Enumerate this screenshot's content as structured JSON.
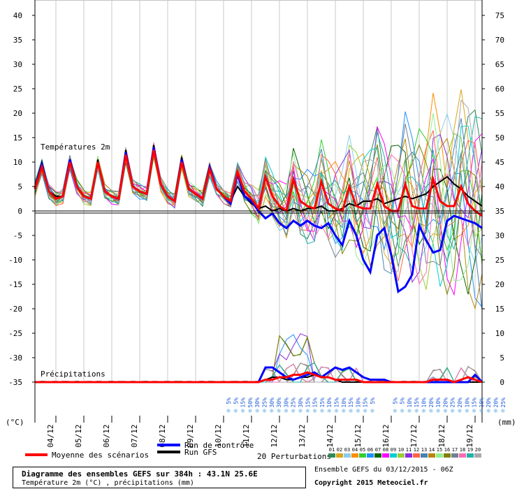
{
  "chart_data": {
    "type": "line",
    "title": "Diagramme des ensembles GEFS sur 384h : 43.1N 25.6E",
    "subtitle": "Température 2m (°C) , précipitations (mm)",
    "section_labels": {
      "temperature": "Températures 2m",
      "precipitation": "Précipitations"
    },
    "left_axis": {
      "unit_label": "(°C)",
      "ylim": [
        -35,
        40
      ],
      "ticks": [
        40,
        35,
        30,
        25,
        20,
        15,
        10,
        5,
        0,
        -5,
        -10,
        -15,
        -20,
        -25,
        -30,
        -35
      ]
    },
    "right_axis": {
      "unit_label": "(mm)",
      "ylim": [
        0,
        75
      ],
      "ticks": [
        75,
        70,
        65,
        60,
        55,
        50,
        45,
        40,
        35,
        30,
        25,
        20,
        15,
        10,
        5,
        0
      ]
    },
    "x_labels": [
      "04/12",
      "05/12",
      "06/12",
      "07/12",
      "08/12",
      "09/12",
      "10/12",
      "11/12",
      "12/12",
      "13/12",
      "14/12",
      "15/12",
      "16/12",
      "17/12",
      "18/12",
      "19/12"
    ],
    "x_hours": [
      0,
      6,
      12,
      18,
      24,
      30,
      36,
      42,
      48,
      54,
      60,
      66,
      72,
      78,
      84,
      90,
      96,
      102,
      108,
      114,
      120,
      126,
      132,
      138,
      144,
      150,
      156,
      162,
      168,
      174,
      180,
      186,
      192,
      198,
      204,
      210,
      216,
      222,
      228,
      234,
      240,
      246,
      252,
      258,
      264,
      270,
      276,
      282,
      288,
      294,
      300,
      306,
      312,
      318,
      324,
      330,
      336,
      342,
      348,
      354,
      360,
      366,
      372,
      378,
      384
    ],
    "series": [
      {
        "name": "Moyenne des scénarios",
        "color": "#ff0000",
        "temp": [
          4.5,
          9.0,
          4.0,
          2.5,
          3.0,
          10.0,
          5.0,
          3.0,
          2.5,
          10.0,
          4.0,
          3.0,
          2.5,
          11.5,
          5.0,
          4.0,
          3.5,
          12.5,
          5.5,
          3.0,
          2.0,
          10.0,
          4.5,
          3.5,
          2.5,
          8.5,
          4.5,
          3.0,
          2.0,
          8.0,
          4.0,
          2.5,
          0.5,
          7.0,
          3.0,
          1.0,
          0.0,
          6.5,
          2.0,
          1.0,
          0.5,
          6.0,
          1.5,
          0.5,
          0.0,
          5.0,
          1.0,
          0.5,
          0.5,
          5.5,
          1.0,
          0.0,
          0.0,
          5.5,
          1.0,
          0.5,
          0.5,
          6.5,
          2.0,
          1.0,
          1.0,
          5.0,
          1.5,
          0.0,
          -1.0
        ],
        "precip": [
          0,
          0,
          0,
          0,
          0,
          0,
          0,
          0,
          0,
          0,
          0,
          0,
          0,
          0,
          0,
          0,
          0,
          0,
          0,
          0,
          0,
          0,
          0,
          0,
          0,
          0,
          0,
          0,
          0,
          0,
          0,
          0,
          0,
          0.5,
          0.5,
          1,
          1,
          1.5,
          1.5,
          2,
          1.5,
          1,
          1,
          0.5,
          0.5,
          0.5,
          0.5,
          0,
          0,
          0,
          0,
          0,
          0,
          0,
          0,
          0,
          0,
          0.5,
          0.5,
          0.5,
          0,
          0.5,
          1,
          0.5,
          0
        ]
      },
      {
        "name": "Run de contrôle",
        "color": "#0000ff",
        "temp": [
          4.5,
          9.5,
          4.0,
          2.5,
          3.0,
          10.5,
          5.0,
          3.0,
          2.5,
          10.0,
          4.0,
          3.0,
          2.5,
          12.0,
          5.0,
          4.0,
          3.5,
          13.0,
          5.5,
          3.0,
          2.0,
          10.5,
          4.5,
          3.5,
          2.5,
          9.0,
          4.5,
          3.0,
          1.5,
          7.5,
          3.0,
          2.0,
          0.0,
          -1.5,
          -0.5,
          -2.5,
          -3.5,
          -2.0,
          -3.0,
          -2.0,
          -3.0,
          -3.5,
          -2.5,
          -5.0,
          -7.0,
          -2.0,
          -5.0,
          -10.0,
          -12.5,
          -5.0,
          -3.5,
          -9.0,
          -16.5,
          -15.5,
          -13.0,
          -3.0,
          -6.0,
          -8.5,
          -8.0,
          -2.0,
          -1.0,
          -1.5,
          -2.0,
          -2.5,
          -3.5
        ],
        "precip": [
          0,
          0,
          0,
          0,
          0,
          0,
          0,
          0,
          0,
          0,
          0,
          0,
          0,
          0,
          0,
          0,
          0,
          0,
          0,
          0,
          0,
          0,
          0,
          0,
          0,
          0,
          0,
          0,
          0,
          0,
          0,
          0,
          0,
          3,
          3,
          2,
          1,
          0.5,
          1,
          1.5,
          2,
          1,
          2,
          3,
          2.5,
          3,
          2,
          1,
          0.5,
          0.5,
          0.5,
          0,
          0,
          0,
          0,
          0,
          0,
          0,
          0,
          0,
          0,
          0,
          0,
          1.5,
          0
        ]
      },
      {
        "name": "Run GFS",
        "color": "#000000",
        "temp": [
          5.0,
          10.0,
          4.0,
          3.0,
          3.0,
          10.5,
          5.0,
          3.0,
          2.5,
          10.5,
          4.0,
          3.0,
          2.5,
          12.5,
          5.0,
          4.0,
          3.5,
          13.5,
          5.5,
          3.0,
          2.0,
          11.0,
          4.5,
          3.5,
          2.5,
          9.0,
          4.5,
          3.0,
          2.0,
          5.0,
          3.0,
          1.5,
          0.5,
          1.0,
          0.0,
          0.5,
          0.0,
          0.5,
          0.0,
          0.5,
          0.5,
          1.0,
          0.0,
          0.0,
          0.5,
          1.5,
          1.0,
          2.0,
          2.0,
          2.5,
          1.5,
          2.0,
          2.5,
          3.0,
          2.5,
          3.0,
          3.5,
          5.0,
          6.0,
          7.0,
          5.5,
          4.5,
          3.0,
          2.0,
          1.0
        ],
        "precip": [
          0,
          0,
          0,
          0,
          0,
          0,
          0,
          0,
          0,
          0,
          0,
          0,
          0,
          0,
          0,
          0,
          0,
          0,
          0,
          0,
          0,
          0,
          0,
          0,
          0,
          0,
          0,
          0,
          0,
          0,
          0,
          0,
          0,
          0.5,
          1,
          1,
          0.5,
          0.5,
          1,
          1,
          1.5,
          1,
          1,
          0.5,
          0,
          0,
          0,
          0,
          0,
          0,
          0,
          0,
          0,
          0,
          0,
          0,
          0,
          0,
          0,
          0,
          0,
          0,
          0,
          0,
          0
        ]
      }
    ],
    "legend": [
      "Moyenne des scénarios",
      "Run de contrôle",
      "Run GFS",
      "20 Perturbations"
    ],
    "perturbations": {
      "label": "20 Perturbations",
      "ids": [
        "01",
        "02",
        "03",
        "04",
        "05",
        "06",
        "07",
        "08",
        "09",
        "10",
        "11",
        "12",
        "13",
        "14",
        "15",
        "16",
        "17",
        "18",
        "19",
        "20"
      ],
      "colors": [
        "#2e8b57",
        "#daa520",
        "#87ceeb",
        "#ff8c00",
        "#32cd32",
        "#1e90ff",
        "#006400",
        "#ff00ff",
        "#00ced1",
        "#9acd32",
        "#8a2be2",
        "#ff6347",
        "#4682b4",
        "#b8860b",
        "#90ee90",
        "#808000",
        "#708090",
        "#ff69b4",
        "#20b2aa",
        "#a9a9a9"
      ]
    },
    "snow_probabilities": [
      "5%",
      "5%",
      "15%",
      "50%",
      "30%",
      "25%",
      "30%",
      "30%",
      "30%",
      "25%",
      "30%",
      "15%",
      "15%",
      "15%",
      "10%",
      "15%",
      "10%",
      "15%",
      "10%",
      "15%",
      "5%",
      "5%",
      "5%",
      "10%",
      "15%",
      "10%",
      "20%",
      "10%",
      "20%",
      "25%",
      "20%",
      "10%",
      "15%",
      "10%",
      "20%",
      "20%",
      "25%"
    ],
    "footer": {
      "ensemble": "Ensemble GEFS du 03/12/2015 - 06Z",
      "copyright": "Copyright 2015 Meteociel.fr"
    }
  }
}
